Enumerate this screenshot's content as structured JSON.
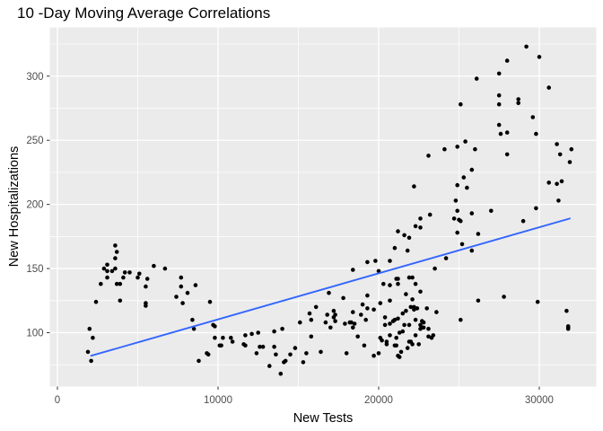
{
  "chart_data": {
    "type": "scatter",
    "title": "10 -Day Moving Average Correlations",
    "xlabel": "New Tests",
    "ylabel": "New Hospitalizations",
    "xlim": [
      -475,
      33550
    ],
    "ylim": [
      58,
      338
    ],
    "x_ticks": [
      0,
      10000,
      20000,
      30000
    ],
    "x_minor_ticks": [
      5000,
      15000,
      25000
    ],
    "y_ticks": [
      100,
      150,
      200,
      250,
      300
    ],
    "y_minor_ticks": [
      75,
      125,
      175,
      225,
      275,
      325
    ],
    "grid": true,
    "legend": false,
    "trend_line": {
      "type": "linear",
      "x1": 2100,
      "y1": 82,
      "x2": 31900,
      "y2": 189
    },
    "colors": {
      "background": "#FFFFFF",
      "panel_background": "#EBEBEB",
      "gridline": "#FFFFFF",
      "point": "#000000",
      "trend_line": "#3366FF",
      "tick_label": "#4D4D4D",
      "tick_mark": "#333333",
      "axis_title": "#000000",
      "title": "#000000"
    },
    "points": [
      [
        2900,
        150
      ],
      [
        3100,
        153
      ],
      [
        3100,
        148
      ],
      [
        3400,
        148
      ],
      [
        3600,
        168
      ],
      [
        3700,
        163
      ],
      [
        3600,
        158
      ],
      [
        3600,
        150
      ],
      [
        4200,
        147
      ],
      [
        4500,
        147
      ],
      [
        4100,
        143
      ],
      [
        3100,
        143
      ],
      [
        5100,
        146
      ],
      [
        6000,
        152
      ],
      [
        6700,
        150
      ],
      [
        5000,
        143
      ],
      [
        5600,
        142
      ],
      [
        2700,
        138
      ],
      [
        3700,
        138
      ],
      [
        3900,
        138
      ],
      [
        5500,
        136
      ],
      [
        7700,
        143
      ],
      [
        7700,
        136
      ],
      [
        8600,
        137
      ],
      [
        8100,
        131
      ],
      [
        7400,
        128
      ],
      [
        2400,
        124
      ],
      [
        3900,
        125
      ],
      [
        5500,
        123
      ],
      [
        5500,
        121
      ],
      [
        7800,
        123
      ],
      [
        9500,
        124
      ],
      [
        8400,
        110
      ],
      [
        8500,
        103
      ],
      [
        2000,
        103
      ],
      [
        2200,
        96
      ],
      [
        9800,
        105
      ],
      [
        9700,
        106
      ],
      [
        9800,
        96
      ],
      [
        10300,
        96
      ],
      [
        10200,
        90
      ],
      [
        10100,
        90
      ],
      [
        9300,
        84
      ],
      [
        9400,
        83
      ],
      [
        8800,
        78
      ],
      [
        1900,
        85
      ],
      [
        2100,
        78
      ],
      [
        10800,
        96
      ],
      [
        10900,
        93
      ],
      [
        11700,
        98
      ],
      [
        12100,
        99
      ],
      [
        12500,
        100
      ],
      [
        11600,
        91
      ],
      [
        11700,
        90
      ],
      [
        12600,
        89
      ],
      [
        12400,
        84
      ],
      [
        12800,
        89
      ],
      [
        13500,
        89
      ],
      [
        13600,
        83
      ],
      [
        13200,
        74
      ],
      [
        13900,
        68
      ],
      [
        14100,
        77
      ],
      [
        14200,
        78
      ],
      [
        14500,
        83
      ],
      [
        14800,
        88
      ],
      [
        15300,
        77
      ],
      [
        15500,
        84
      ],
      [
        16400,
        85
      ],
      [
        18000,
        84
      ],
      [
        13500,
        101
      ],
      [
        14000,
        103
      ],
      [
        15100,
        108
      ],
      [
        15800,
        110
      ],
      [
        15800,
        97
      ],
      [
        15700,
        115
      ],
      [
        16100,
        120
      ],
      [
        16800,
        114
      ],
      [
        17200,
        117
      ],
      [
        17300,
        114
      ],
      [
        17200,
        112
      ],
      [
        18400,
        116
      ],
      [
        18900,
        114
      ],
      [
        17900,
        107
      ],
      [
        18200,
        108
      ],
      [
        18300,
        108
      ],
      [
        18500,
        107
      ],
      [
        16700,
        108
      ],
      [
        17000,
        104
      ],
      [
        17300,
        109
      ],
      [
        18400,
        104
      ],
      [
        19200,
        110
      ],
      [
        19700,
        118
      ],
      [
        16900,
        131
      ],
      [
        17800,
        127
      ],
      [
        19300,
        129
      ],
      [
        19000,
        122
      ],
      [
        19300,
        119
      ],
      [
        18400,
        149
      ],
      [
        19300,
        155
      ],
      [
        19800,
        156
      ],
      [
        20000,
        148
      ],
      [
        20700,
        156
      ],
      [
        21000,
        166
      ],
      [
        21200,
        179
      ],
      [
        21600,
        176
      ],
      [
        21900,
        174
      ],
      [
        21900,
        143
      ],
      [
        21100,
        142
      ],
      [
        21200,
        142
      ],
      [
        20300,
        138
      ],
      [
        20700,
        137
      ],
      [
        21200,
        138
      ],
      [
        21700,
        130
      ],
      [
        20100,
        123
      ],
      [
        20700,
        125
      ],
      [
        20400,
        112
      ],
      [
        21500,
        115
      ],
      [
        21700,
        117
      ],
      [
        20400,
        106
      ],
      [
        20700,
        107
      ],
      [
        20900,
        109
      ],
      [
        21000,
        110
      ],
      [
        21200,
        111
      ],
      [
        21600,
        106
      ],
      [
        21900,
        106
      ],
      [
        21300,
        100
      ],
      [
        21500,
        101
      ],
      [
        18700,
        97
      ],
      [
        19100,
        90
      ],
      [
        19700,
        82
      ],
      [
        20000,
        84
      ],
      [
        20500,
        93
      ],
      [
        20500,
        91
      ],
      [
        21000,
        90
      ],
      [
        21100,
        90
      ],
      [
        21400,
        85
      ],
      [
        20100,
        96
      ],
      [
        20200,
        94
      ],
      [
        20700,
        98
      ],
      [
        21100,
        96
      ],
      [
        21200,
        82
      ],
      [
        21300,
        81
      ],
      [
        21800,
        88
      ],
      [
        21800,
        164
      ],
      [
        21900,
        93
      ],
      [
        22000,
        93
      ],
      [
        22100,
        91
      ],
      [
        22500,
        91
      ],
      [
        22300,
        98
      ],
      [
        22000,
        120
      ],
      [
        22200,
        120
      ],
      [
        22400,
        119
      ],
      [
        22200,
        118
      ],
      [
        23000,
        119
      ],
      [
        23600,
        116
      ],
      [
        22300,
        110
      ],
      [
        22700,
        109
      ],
      [
        22800,
        108
      ],
      [
        25100,
        110
      ],
      [
        22600,
        106
      ],
      [
        22700,
        104
      ],
      [
        22800,
        104
      ],
      [
        22600,
        103
      ],
      [
        23100,
        103
      ],
      [
        23100,
        97
      ],
      [
        23300,
        96
      ],
      [
        23400,
        98
      ],
      [
        22100,
        126
      ],
      [
        22300,
        138
      ],
      [
        22100,
        143
      ],
      [
        22600,
        132
      ],
      [
        23500,
        150
      ],
      [
        24200,
        158
      ],
      [
        22300,
        183
      ],
      [
        22600,
        189
      ],
      [
        22600,
        182
      ],
      [
        23200,
        192
      ],
      [
        24700,
        189
      ],
      [
        25100,
        187
      ],
      [
        24900,
        195
      ],
      [
        25000,
        188
      ],
      [
        25800,
        193
      ],
      [
        27000,
        195
      ],
      [
        29800,
        197
      ],
      [
        29000,
        187
      ],
      [
        24900,
        178
      ],
      [
        26200,
        177
      ],
      [
        25200,
        169
      ],
      [
        25800,
        164
      ],
      [
        26200,
        125
      ],
      [
        27800,
        128
      ],
      [
        29900,
        124
      ],
      [
        31700,
        117
      ],
      [
        31800,
        105
      ],
      [
        31800,
        104
      ],
      [
        31800,
        103
      ],
      [
        22200,
        214
      ],
      [
        24800,
        203
      ],
      [
        24900,
        215
      ],
      [
        25300,
        221
      ],
      [
        25500,
        213
      ],
      [
        25800,
        227
      ],
      [
        23100,
        238
      ],
      [
        24100,
        243
      ],
      [
        24900,
        245
      ],
      [
        25400,
        249
      ],
      [
        26000,
        243
      ],
      [
        28000,
        239
      ],
      [
        31300,
        239
      ],
      [
        32000,
        243
      ],
      [
        31900,
        233
      ],
      [
        30600,
        217
      ],
      [
        31100,
        216
      ],
      [
        31400,
        218
      ],
      [
        31200,
        203
      ],
      [
        25100,
        278
      ],
      [
        26100,
        298
      ],
      [
        27500,
        302
      ],
      [
        27500,
        285
      ],
      [
        27500,
        278
      ],
      [
        27500,
        262
      ],
      [
        27600,
        255
      ],
      [
        28000,
        256
      ],
      [
        28000,
        312
      ],
      [
        28700,
        282
      ],
      [
        28700,
        279
      ],
      [
        29200,
        323
      ],
      [
        29600,
        268
      ],
      [
        29800,
        255
      ],
      [
        30000,
        315
      ],
      [
        30600,
        291
      ],
      [
        31100,
        247
      ]
    ]
  }
}
